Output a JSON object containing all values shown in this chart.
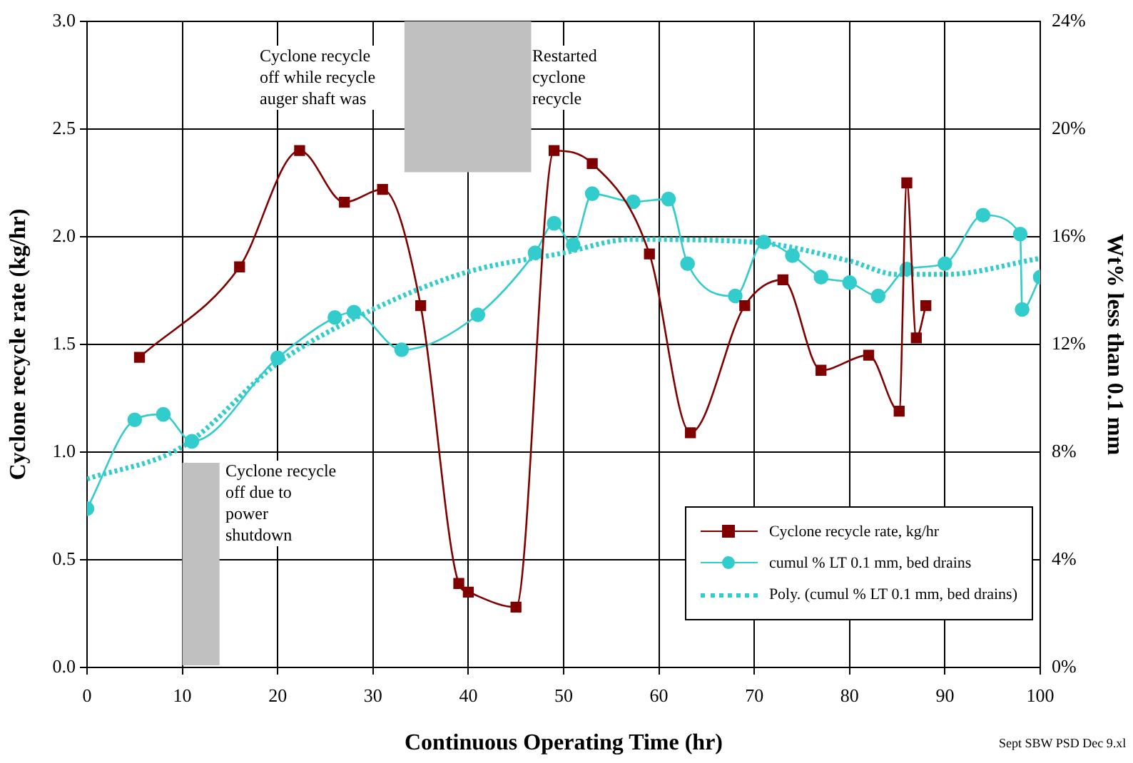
{
  "chart_data": {
    "type": "line",
    "xlabel": "Continuous Operating Time (hr)",
    "ylabel": "Cyclone recycle rate (kg/hr)",
    "y2label": "Wt% less than 0.1 mm",
    "xlim": [
      0,
      100
    ],
    "xticks": [
      0,
      10,
      20,
      30,
      40,
      50,
      60,
      70,
      80,
      90,
      100
    ],
    "ylim": [
      0,
      3
    ],
    "yticks": [
      {
        "value": 0,
        "label": "0.0"
      },
      {
        "value": 0.5,
        "label": "0.5"
      },
      {
        "value": 1,
        "label": "1.0"
      },
      {
        "value": 1.5,
        "label": "1.5"
      },
      {
        "value": 2,
        "label": "2.0"
      },
      {
        "value": 2.5,
        "label": "2.5"
      },
      {
        "value": 3,
        "label": "3.0"
      }
    ],
    "y2lim": [
      0,
      24
    ],
    "y2ticks": [
      {
        "value": 0,
        "label": "0%"
      },
      {
        "value": 4,
        "label": "4%"
      },
      {
        "value": 8,
        "label": "8%"
      },
      {
        "value": 12,
        "label": "12%"
      },
      {
        "value": 16,
        "label": "16%"
      },
      {
        "value": 20,
        "label": "20%"
      },
      {
        "value": 24,
        "label": "24%"
      }
    ],
    "grid": true,
    "legend": "bottom right",
    "bands": [
      {
        "axis": "x",
        "from": 33.3,
        "to": 46.6,
        "color": "#c0c0c0"
      },
      {
        "axis": "x",
        "from": 10,
        "to": 13.9,
        "color": "#c0c0c0"
      }
    ],
    "annotations": [
      "Cyclone recycle off while recycle auger shaft was",
      "Restarted cyclone recycle",
      "Cyclone recycle off due to power shutdown",
      "Sept SBW PSD Dec 9.xl"
    ],
    "series": [
      {
        "name": "Cyclone recycle rate, kg/hr",
        "color": "#800000",
        "marker": "square",
        "x": [
          5.5,
          16,
          22.3,
          27,
          31,
          35,
          39,
          40,
          45,
          49,
          53,
          59,
          63.3,
          69,
          73,
          77,
          82,
          85.2,
          86,
          87,
          88
        ],
        "values": [
          1.44,
          1.86,
          2.4,
          2.16,
          2.22,
          1.68,
          0.39,
          0.35,
          0.28,
          2.4,
          2.34,
          1.92,
          1.09,
          1.68,
          1.8,
          1.38,
          1.45,
          1.19,
          2.25,
          1.53,
          1.68
        ]
      },
      {
        "name": "cumul % LT 0.1 mm, bed drains",
        "color": "#33cccc",
        "marker": "circle",
        "axis": "y2",
        "x": [
          0,
          5,
          8,
          11,
          20,
          26,
          28,
          33,
          41,
          47,
          49,
          51,
          53,
          57.3,
          61,
          63,
          68,
          71,
          74,
          77,
          80,
          83,
          86,
          90,
          94,
          97.9,
          98.1,
          100
        ],
        "values": [
          5.9,
          9.2,
          9.4,
          8.4,
          11.5,
          13,
          13.2,
          11.8,
          13.1,
          15.4,
          16.5,
          15.7,
          17.6,
          17.3,
          17.4,
          15,
          13.8,
          15.8,
          15.3,
          14.5,
          14.3,
          13.8,
          14.8,
          15,
          16.8,
          16.1,
          13.3,
          14.5
        ]
      },
      {
        "name": "Poly. (cumul % LT 0.1 mm, bed drains)",
        "color": "#33cccc",
        "marker": "none",
        "line_style": "dotted",
        "axis": "y2",
        "x": [
          0,
          10,
          20,
          30,
          40,
          50,
          57,
          70,
          80,
          85,
          90,
          100
        ],
        "values": [
          7,
          8.2,
          11.3,
          13.3,
          14.7,
          15.4,
          15.9,
          15.8,
          15.1,
          14.6,
          14.6,
          15.2
        ]
      }
    ]
  }
}
